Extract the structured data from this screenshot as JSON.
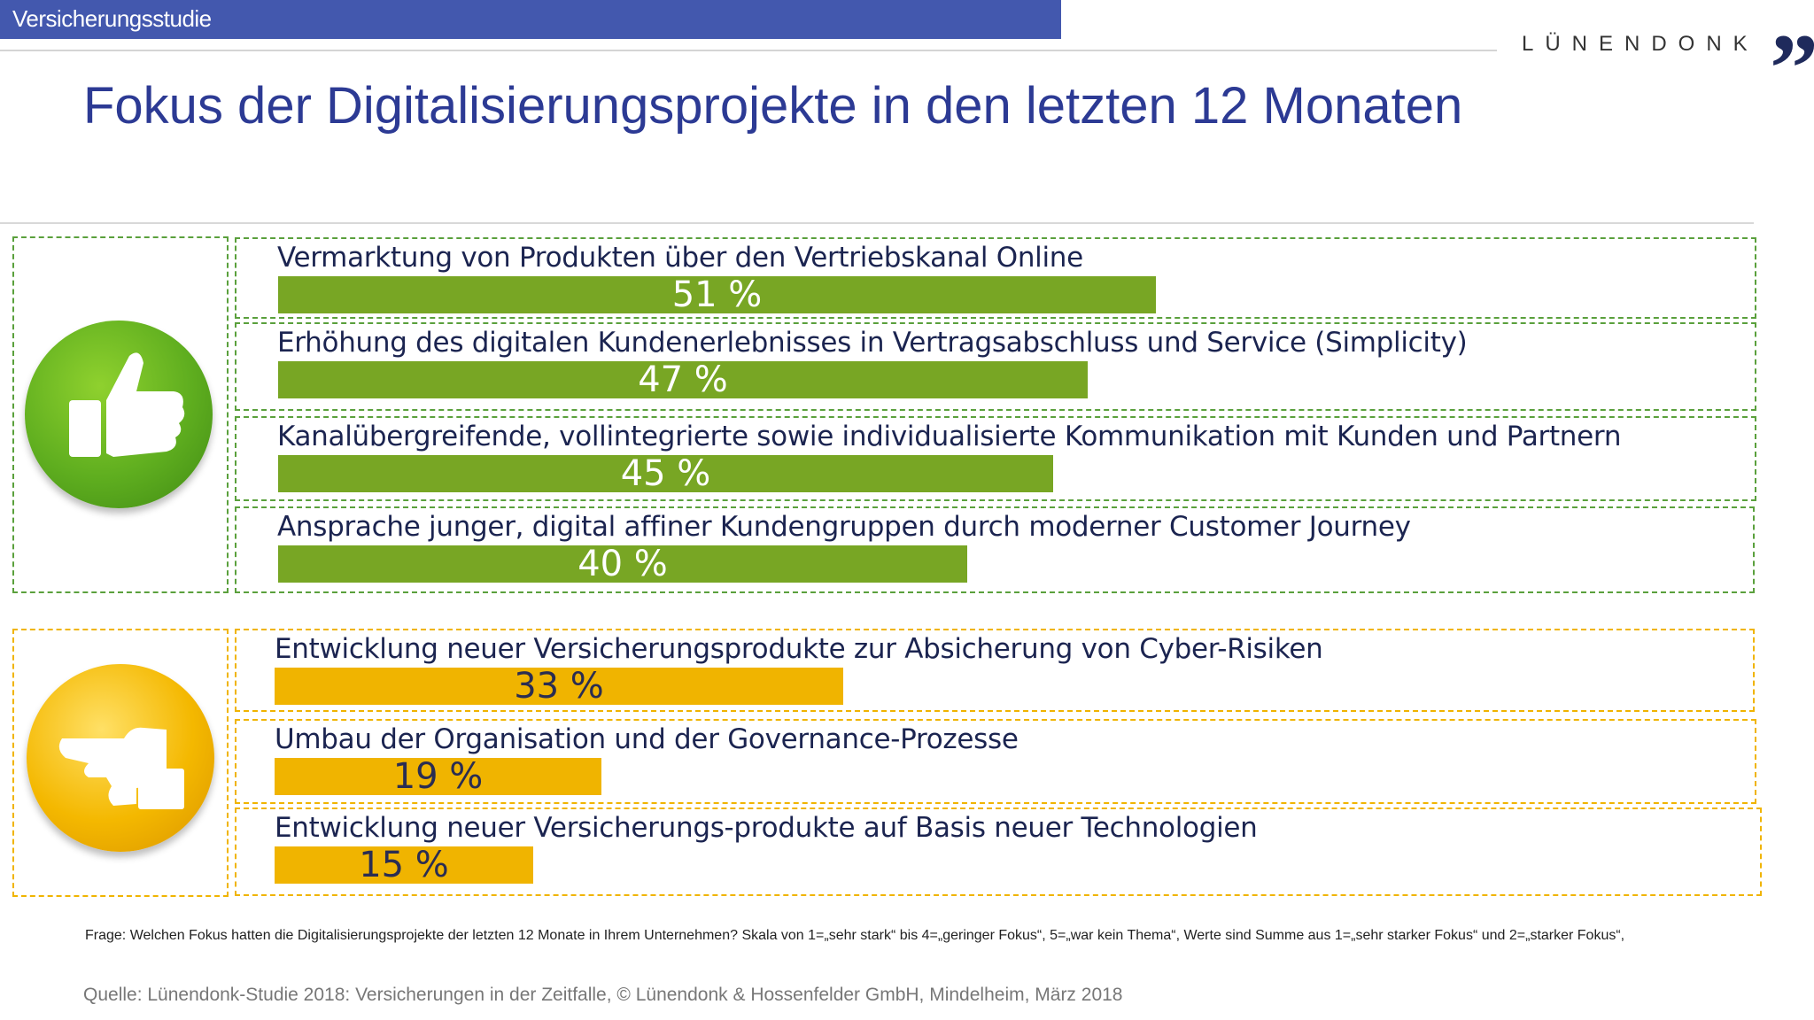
{
  "header": {
    "section_label": "Versicherungsstudie",
    "brand": "LÜNENDONK",
    "brand_mark": "”"
  },
  "title": "Fokus der Digitalisierungsprojekte in den letzten 12 Monaten",
  "colors": {
    "header": "#4358ae",
    "positive": "#78a624",
    "neutral": "#f0b400"
  },
  "icons": {
    "positive": "thumbs-up-icon",
    "neutral": "thumbs-sideways-icon"
  },
  "chart_data": {
    "type": "bar",
    "orientation": "horizontal",
    "unit": "%",
    "xlim": [
      0,
      100
    ],
    "categories": [
      "Vermarktung von Produkten über den Vertriebskanal Online",
      "Erhöhung des digitalen Kundenerlebnisses in Vertragsabschluss und Service (Simplicity)",
      "Kanalübergreifende, vollintegrierte sowie individualisierte Kommunikation mit Kunden und Partnern",
      "Ansprache junger, digital affiner Kundengruppen durch moderner Customer Journey",
      "Entwicklung neuer Versicherungsprodukte zur Absicherung von Cyber-Risiken",
      "Umbau der Organisation und der Governance-Prozesse",
      "Entwicklung neuer Versicherungs-produkte auf Basis neuer Technologien"
    ],
    "values": [
      51,
      47,
      45,
      40,
      33,
      19,
      15
    ],
    "value_labels": [
      "51 %",
      "47 %",
      "45 %",
      "40 %",
      "33 %",
      "19 %",
      "15 %"
    ],
    "groups": [
      "positive",
      "positive",
      "positive",
      "positive",
      "neutral",
      "neutral",
      "neutral"
    ]
  },
  "footnote": "Frage: Welchen Fokus hatten die Digitalisierungsprojekte der letzten 12 Monate in Ihrem Unternehmen? Skala von 1=„sehr stark“ bis 4=„geringer Fokus“, 5=„war kein Thema“, Werte sind Summe aus 1=„sehr starker Fokus“ und 2=„starker Fokus“,",
  "source": "Quelle: Lünendonk-Studie 2018: Versicherungen in der Zeitfalle, © Lünendonk & Hossenfelder GmbH, Mindelheim, März 2018"
}
